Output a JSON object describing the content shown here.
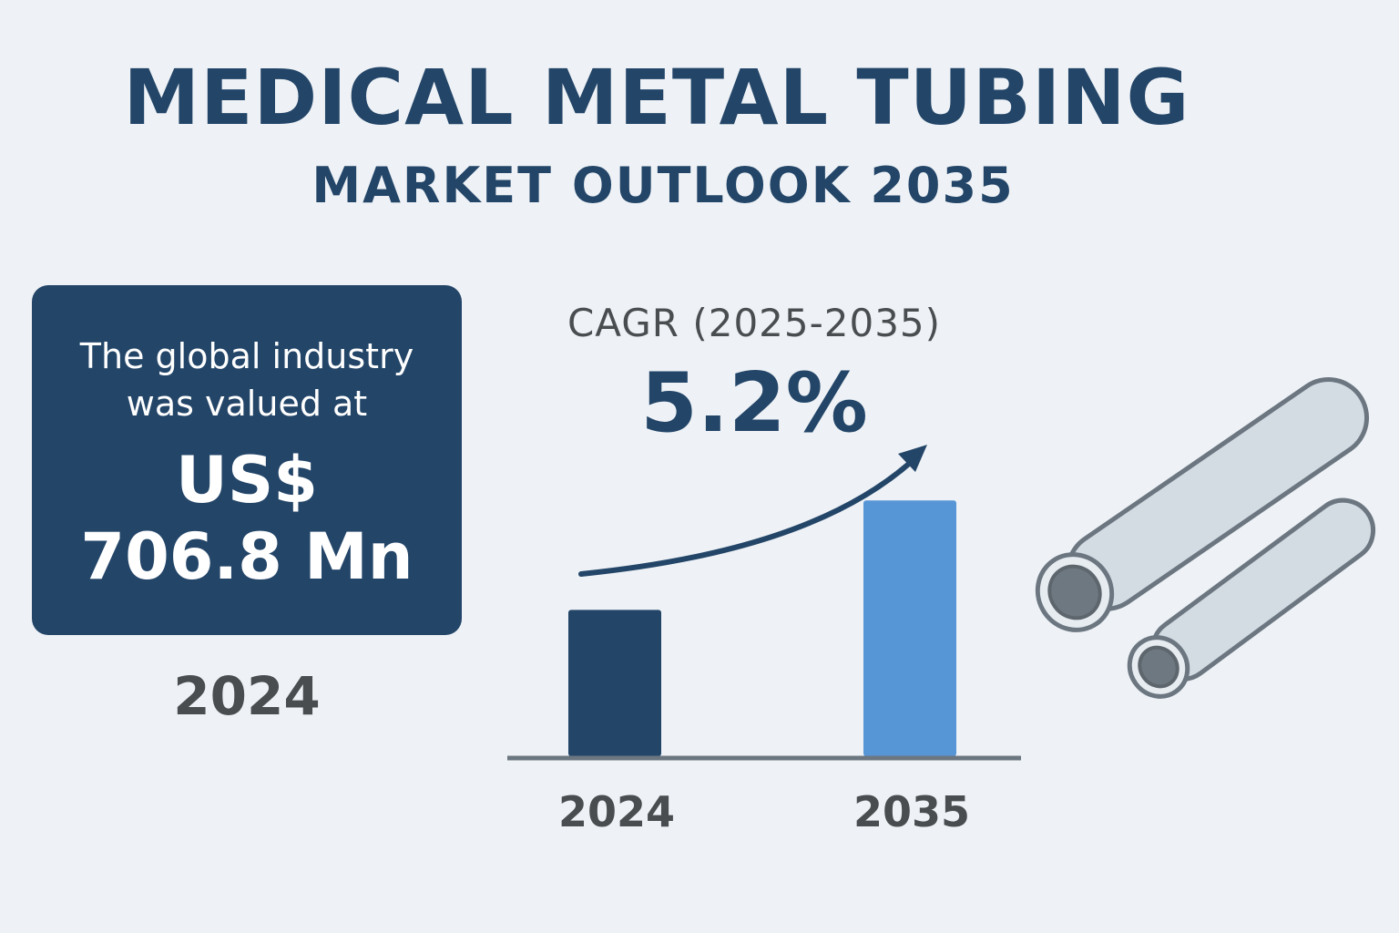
{
  "header": {
    "title": "MEDICAL METAL TUBING",
    "subtitle": "MARKET OUTLOOK 2035"
  },
  "value_card": {
    "line1": "The global industry",
    "line2": "was valued at",
    "currency": "US$",
    "amount": "706.8 Mn",
    "year": "2024"
  },
  "cagr": {
    "label": "CAGR (2025-2035)",
    "value": "5.2%"
  },
  "colors": {
    "navy": "#234568",
    "blue": "#5796d6",
    "grey_text": "#4a4d50",
    "axis": "#6b7680",
    "tube_fill": "#d3dbe3",
    "tube_stroke": "#6b7680"
  },
  "icons": {
    "tubes": "metal-tubes-illustration",
    "trend": "growth-arrow-icon"
  },
  "chart_data": {
    "type": "bar",
    "categories": [
      "2024",
      "2035"
    ],
    "values": [
      706.8,
      1235
    ],
    "ylim": [
      0,
      1500
    ],
    "grid": false,
    "bar_colors": [
      "#234568",
      "#5796d6"
    ],
    "annotation": "growth arrow from 2024 toward 2035"
  }
}
